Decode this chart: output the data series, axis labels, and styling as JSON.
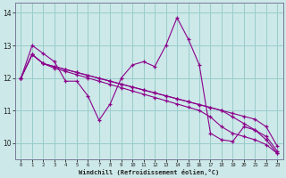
{
  "xlabel": "Windchill (Refroidissement éolien,°C)",
  "bg_color": "#cce8e8",
  "line_color": "#8b008b",
  "grid_color": "#99cccc",
  "spine_color": "#7a7a9a",
  "x_hours": [
    0,
    1,
    2,
    3,
    4,
    5,
    6,
    7,
    8,
    9,
    10,
    11,
    12,
    13,
    14,
    15,
    16,
    17,
    18,
    19,
    20,
    21,
    22,
    23
  ],
  "series_main": [
    12.0,
    13.0,
    12.75,
    12.5,
    11.9,
    11.9,
    11.45,
    10.7,
    11.2,
    12.0,
    12.4,
    12.5,
    12.35,
    13.0,
    13.85,
    13.2,
    12.4,
    10.3,
    10.1,
    10.05,
    10.5,
    10.4,
    10.1,
    9.68
  ],
  "series_linear": [
    [
      12.0,
      12.72,
      12.44,
      12.35,
      12.26,
      12.17,
      12.08,
      11.99,
      11.9,
      11.81,
      11.72,
      11.63,
      11.54,
      11.45,
      11.36,
      11.27,
      11.18,
      11.09,
      11.0,
      10.91,
      10.82,
      10.73,
      10.5,
      9.9
    ],
    [
      12.0,
      12.72,
      12.44,
      12.35,
      12.26,
      12.17,
      12.08,
      11.99,
      11.9,
      11.81,
      11.72,
      11.63,
      11.54,
      11.45,
      11.36,
      11.27,
      11.18,
      11.09,
      11.0,
      10.8,
      10.6,
      10.4,
      10.2,
      9.75
    ],
    [
      12.0,
      12.72,
      12.44,
      12.3,
      12.2,
      12.1,
      12.0,
      11.9,
      11.8,
      11.7,
      11.6,
      11.5,
      11.4,
      11.3,
      11.2,
      11.1,
      11.0,
      10.8,
      10.5,
      10.3,
      10.2,
      10.1,
      9.95,
      9.68
    ]
  ],
  "ylim": [
    9.5,
    14.3
  ],
  "yticks": [
    10,
    11,
    12,
    13,
    14
  ],
  "xtick_labels": [
    "0",
    "1",
    "2",
    "3",
    "4",
    "5",
    "6",
    "7",
    "8",
    "9",
    "10",
    "11",
    "12",
    "13",
    "14",
    "15",
    "16",
    "17",
    "18",
    "19",
    "20",
    "21",
    "22",
    "23"
  ]
}
